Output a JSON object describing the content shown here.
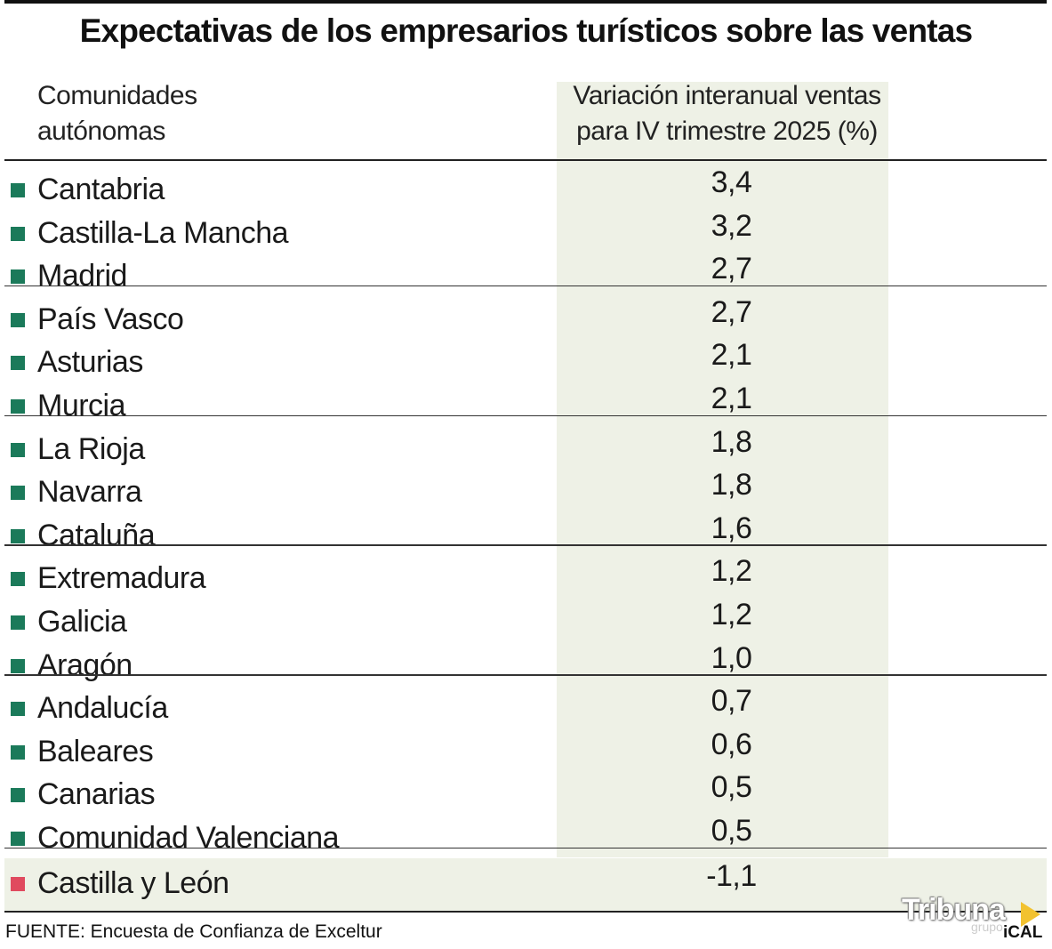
{
  "title": "Expectativas de los empresarios turísticos sobre las ventas",
  "header": {
    "col_left_line1": "Comunidades",
    "col_left_line2": "autónomas",
    "col_right_line1": "Variación interanual ventas",
    "col_right_line2": "para IV trimestre 2025 (%)"
  },
  "chart_data": {
    "type": "table",
    "title": "Expectativas de los empresarios turísticos sobre las ventas",
    "columns": [
      "Comunidades autónomas",
      "Variación interanual ventas para IV trimestre 2025 (%)"
    ],
    "rows": [
      {
        "region": "Cantabria",
        "value": "3,4",
        "highlight": false
      },
      {
        "region": "Castilla-La Mancha",
        "value": "3,2",
        "highlight": false
      },
      {
        "region": "Madrid",
        "value": "2,7",
        "highlight": false
      },
      {
        "region": "País Vasco",
        "value": "2,7",
        "highlight": false
      },
      {
        "region": "Asturias",
        "value": "2,1",
        "highlight": false
      },
      {
        "region": "Murcia",
        "value": "2,1",
        "highlight": false
      },
      {
        "region": "La Rioja",
        "value": "1,8",
        "highlight": false
      },
      {
        "region": "Navarra",
        "value": "1,8",
        "highlight": false
      },
      {
        "region": "Cataluña",
        "value": "1,6",
        "highlight": false
      },
      {
        "region": "Extremadura",
        "value": "1,2",
        "highlight": false
      },
      {
        "region": "Galicia",
        "value": "1,2",
        "highlight": false
      },
      {
        "region": "Aragón",
        "value": "1,0",
        "highlight": false
      },
      {
        "region": "Andalucía",
        "value": "0,7",
        "highlight": false
      },
      {
        "region": "Baleares",
        "value": "0,6",
        "highlight": false
      },
      {
        "region": "Canarias",
        "value": "0,5",
        "highlight": false
      },
      {
        "region": "Comunidad Valenciana",
        "value": "0,5",
        "highlight": false
      },
      {
        "region": "Castilla y León",
        "value": "-1,1",
        "highlight": true
      }
    ]
  },
  "colors": {
    "marker": "#1b7a5a",
    "marker_highlight": "#e04a5f",
    "column_shade": "#eef1e6"
  },
  "source": "FUENTE: Encuesta de Confianza de Exceltur",
  "logo": {
    "brand": "Tribuna",
    "sub": "grupo",
    "agency": "iCAL"
  }
}
